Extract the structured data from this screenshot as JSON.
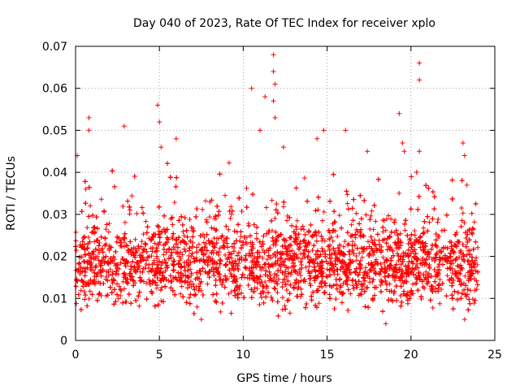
{
  "chart_data": {
    "type": "scatter",
    "title": "Day 040 of 2023, Rate Of TEC Index for receiver xplo",
    "xlabel": "GPS time / hours",
    "ylabel": "ROTI / TECUs",
    "xlim": [
      0,
      25
    ],
    "ylim": [
      0,
      0.07
    ],
    "xticks": [
      "0",
      "5",
      "10",
      "15",
      "20",
      "25"
    ],
    "yticks": [
      "0",
      "0.01",
      "0.02",
      "0.03",
      "0.04",
      "0.05",
      "0.06",
      "0.07"
    ],
    "grid": true,
    "marker": "+",
    "marker_color": "#ff0000",
    "series": [
      {
        "name": "ROTI",
        "x_range": [
          0,
          24
        ],
        "typical_range": [
          0.008,
          0.028
        ],
        "notable_points": [
          {
            "x": 0.1,
            "y": 0.044
          },
          {
            "x": 0.8,
            "y": 0.053
          },
          {
            "x": 0.8,
            "y": 0.05
          },
          {
            "x": 2.9,
            "y": 0.051
          },
          {
            "x": 4.9,
            "y": 0.056
          },
          {
            "x": 5.0,
            "y": 0.052
          },
          {
            "x": 5.1,
            "y": 0.046
          },
          {
            "x": 6.0,
            "y": 0.048
          },
          {
            "x": 7.5,
            "y": 0.005
          },
          {
            "x": 10.5,
            "y": 0.06
          },
          {
            "x": 11.0,
            "y": 0.05
          },
          {
            "x": 11.3,
            "y": 0.058
          },
          {
            "x": 11.8,
            "y": 0.068
          },
          {
            "x": 11.8,
            "y": 0.064
          },
          {
            "x": 11.9,
            "y": 0.061
          },
          {
            "x": 11.8,
            "y": 0.057
          },
          {
            "x": 11.9,
            "y": 0.053
          },
          {
            "x": 12.4,
            "y": 0.046
          },
          {
            "x": 14.4,
            "y": 0.048
          },
          {
            "x": 14.8,
            "y": 0.05
          },
          {
            "x": 16.1,
            "y": 0.05
          },
          {
            "x": 17.4,
            "y": 0.045
          },
          {
            "x": 19.3,
            "y": 0.054
          },
          {
            "x": 19.5,
            "y": 0.047
          },
          {
            "x": 19.6,
            "y": 0.045
          },
          {
            "x": 20.5,
            "y": 0.066
          },
          {
            "x": 20.5,
            "y": 0.062
          },
          {
            "x": 20.5,
            "y": 0.045
          },
          {
            "x": 23.1,
            "y": 0.047
          },
          {
            "x": 23.2,
            "y": 0.044
          },
          {
            "x": 18.5,
            "y": 0.004
          },
          {
            "x": 23.2,
            "y": 0.005
          }
        ]
      }
    ]
  }
}
